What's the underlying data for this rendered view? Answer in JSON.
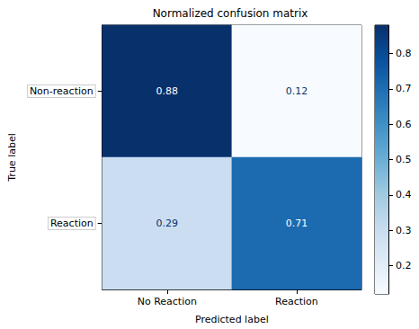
{
  "chart_data": {
    "type": "heatmap",
    "title": "Normalized confusion matrix",
    "x_label": "Predicted label",
    "y_label": "True label",
    "x_categories": [
      "No Reaction",
      "Reaction"
    ],
    "y_categories": [
      "Non-reaction",
      "Reaction"
    ],
    "cells": [
      [
        0.88,
        0.12
      ],
      [
        0.29,
        0.71
      ]
    ],
    "data_labels": true,
    "colorbar": {
      "range": [
        0.12,
        0.88
      ],
      "ticks": [
        0.2,
        0.3,
        0.4,
        0.5,
        0.6,
        0.7,
        0.8
      ]
    }
  }
}
